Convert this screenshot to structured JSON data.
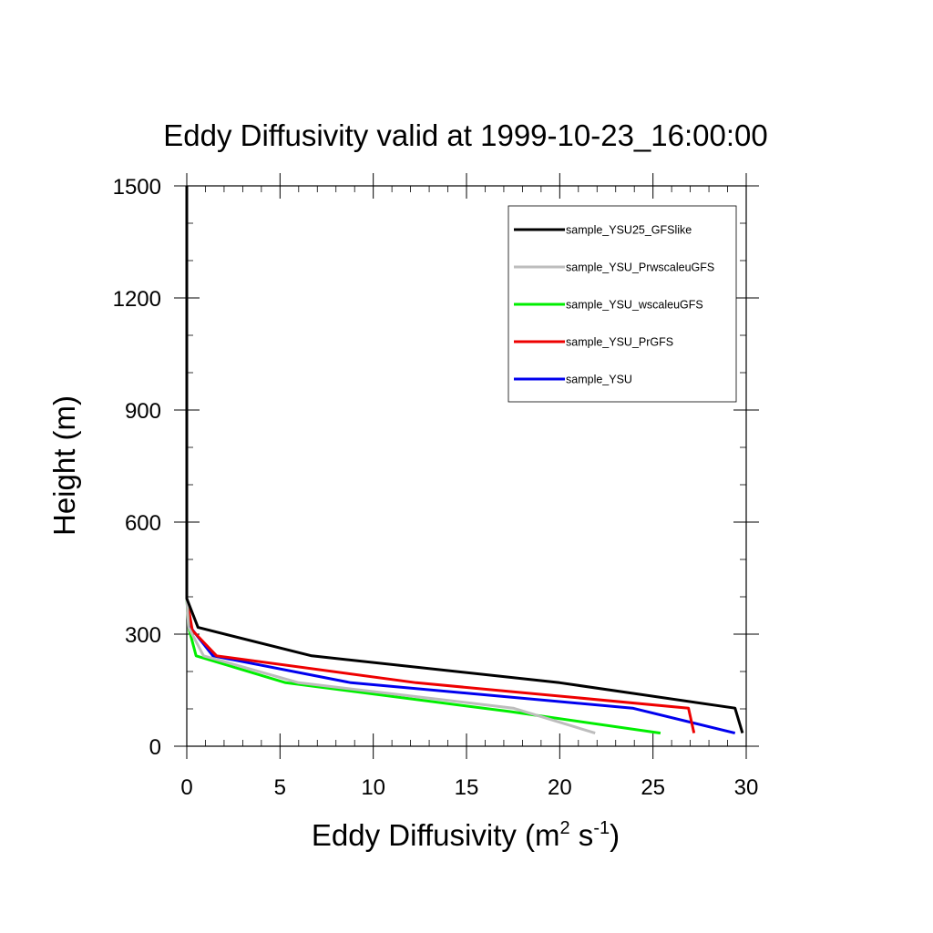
{
  "chart_data": {
    "type": "line",
    "title": "Eddy Diffusivity valid at 1999-10-23_16:00:00",
    "xlabel": {
      "base": "Eddy Diffusivity (m",
      "sup1": "2",
      "mid": " s",
      "sup2": "-1",
      "end": ")"
    },
    "ylabel": "Height (m)",
    "xlim": [
      0,
      30
    ],
    "ylim": [
      0,
      1500
    ],
    "xticks": [
      0,
      5,
      10,
      15,
      20,
      25,
      30
    ],
    "yticks": [
      0,
      300,
      600,
      900,
      1200,
      1500
    ],
    "grid": false,
    "legend_position": "top-right",
    "series": [
      {
        "name": "sample_YSU25_GFSlike",
        "color": "#000000",
        "points": [
          [
            29.8,
            35
          ],
          [
            29.4,
            102
          ],
          [
            20.0,
            170
          ],
          [
            6.7,
            242
          ],
          [
            0.6,
            318
          ],
          [
            0.0,
            395
          ],
          [
            0.0,
            1500
          ]
        ]
      },
      {
        "name": "sample_YSU_PrwscaleuGFS",
        "color": "#bdbdbd",
        "points": [
          [
            21.9,
            35
          ],
          [
            17.5,
            102
          ],
          [
            6.0,
            170
          ],
          [
            0.9,
            242
          ],
          [
            0.1,
            318
          ],
          [
            0.0,
            395
          ],
          [
            0.0,
            1500
          ]
        ]
      },
      {
        "name": "sample_YSU_wscaleuGFS",
        "color": "#00ee00",
        "points": [
          [
            25.4,
            35
          ],
          [
            17.3,
            93
          ],
          [
            5.3,
            170
          ],
          [
            0.5,
            242
          ],
          [
            0.1,
            318
          ],
          [
            0.0,
            395
          ],
          [
            0.0,
            1500
          ]
        ]
      },
      {
        "name": "sample_YSU_PrGFS",
        "color": "#ee0000",
        "points": [
          [
            27.2,
            35
          ],
          [
            26.9,
            102
          ],
          [
            12.3,
            170
          ],
          [
            1.6,
            242
          ],
          [
            0.3,
            310
          ],
          [
            0.0,
            395
          ],
          [
            0.0,
            1500
          ]
        ]
      },
      {
        "name": "sample_YSU",
        "color": "#0000ee",
        "points": [
          [
            29.4,
            35
          ],
          [
            23.9,
            102
          ],
          [
            8.8,
            170
          ],
          [
            1.4,
            242
          ],
          [
            0.2,
            318
          ],
          [
            0.0,
            395
          ],
          [
            0.0,
            1500
          ]
        ]
      }
    ]
  }
}
